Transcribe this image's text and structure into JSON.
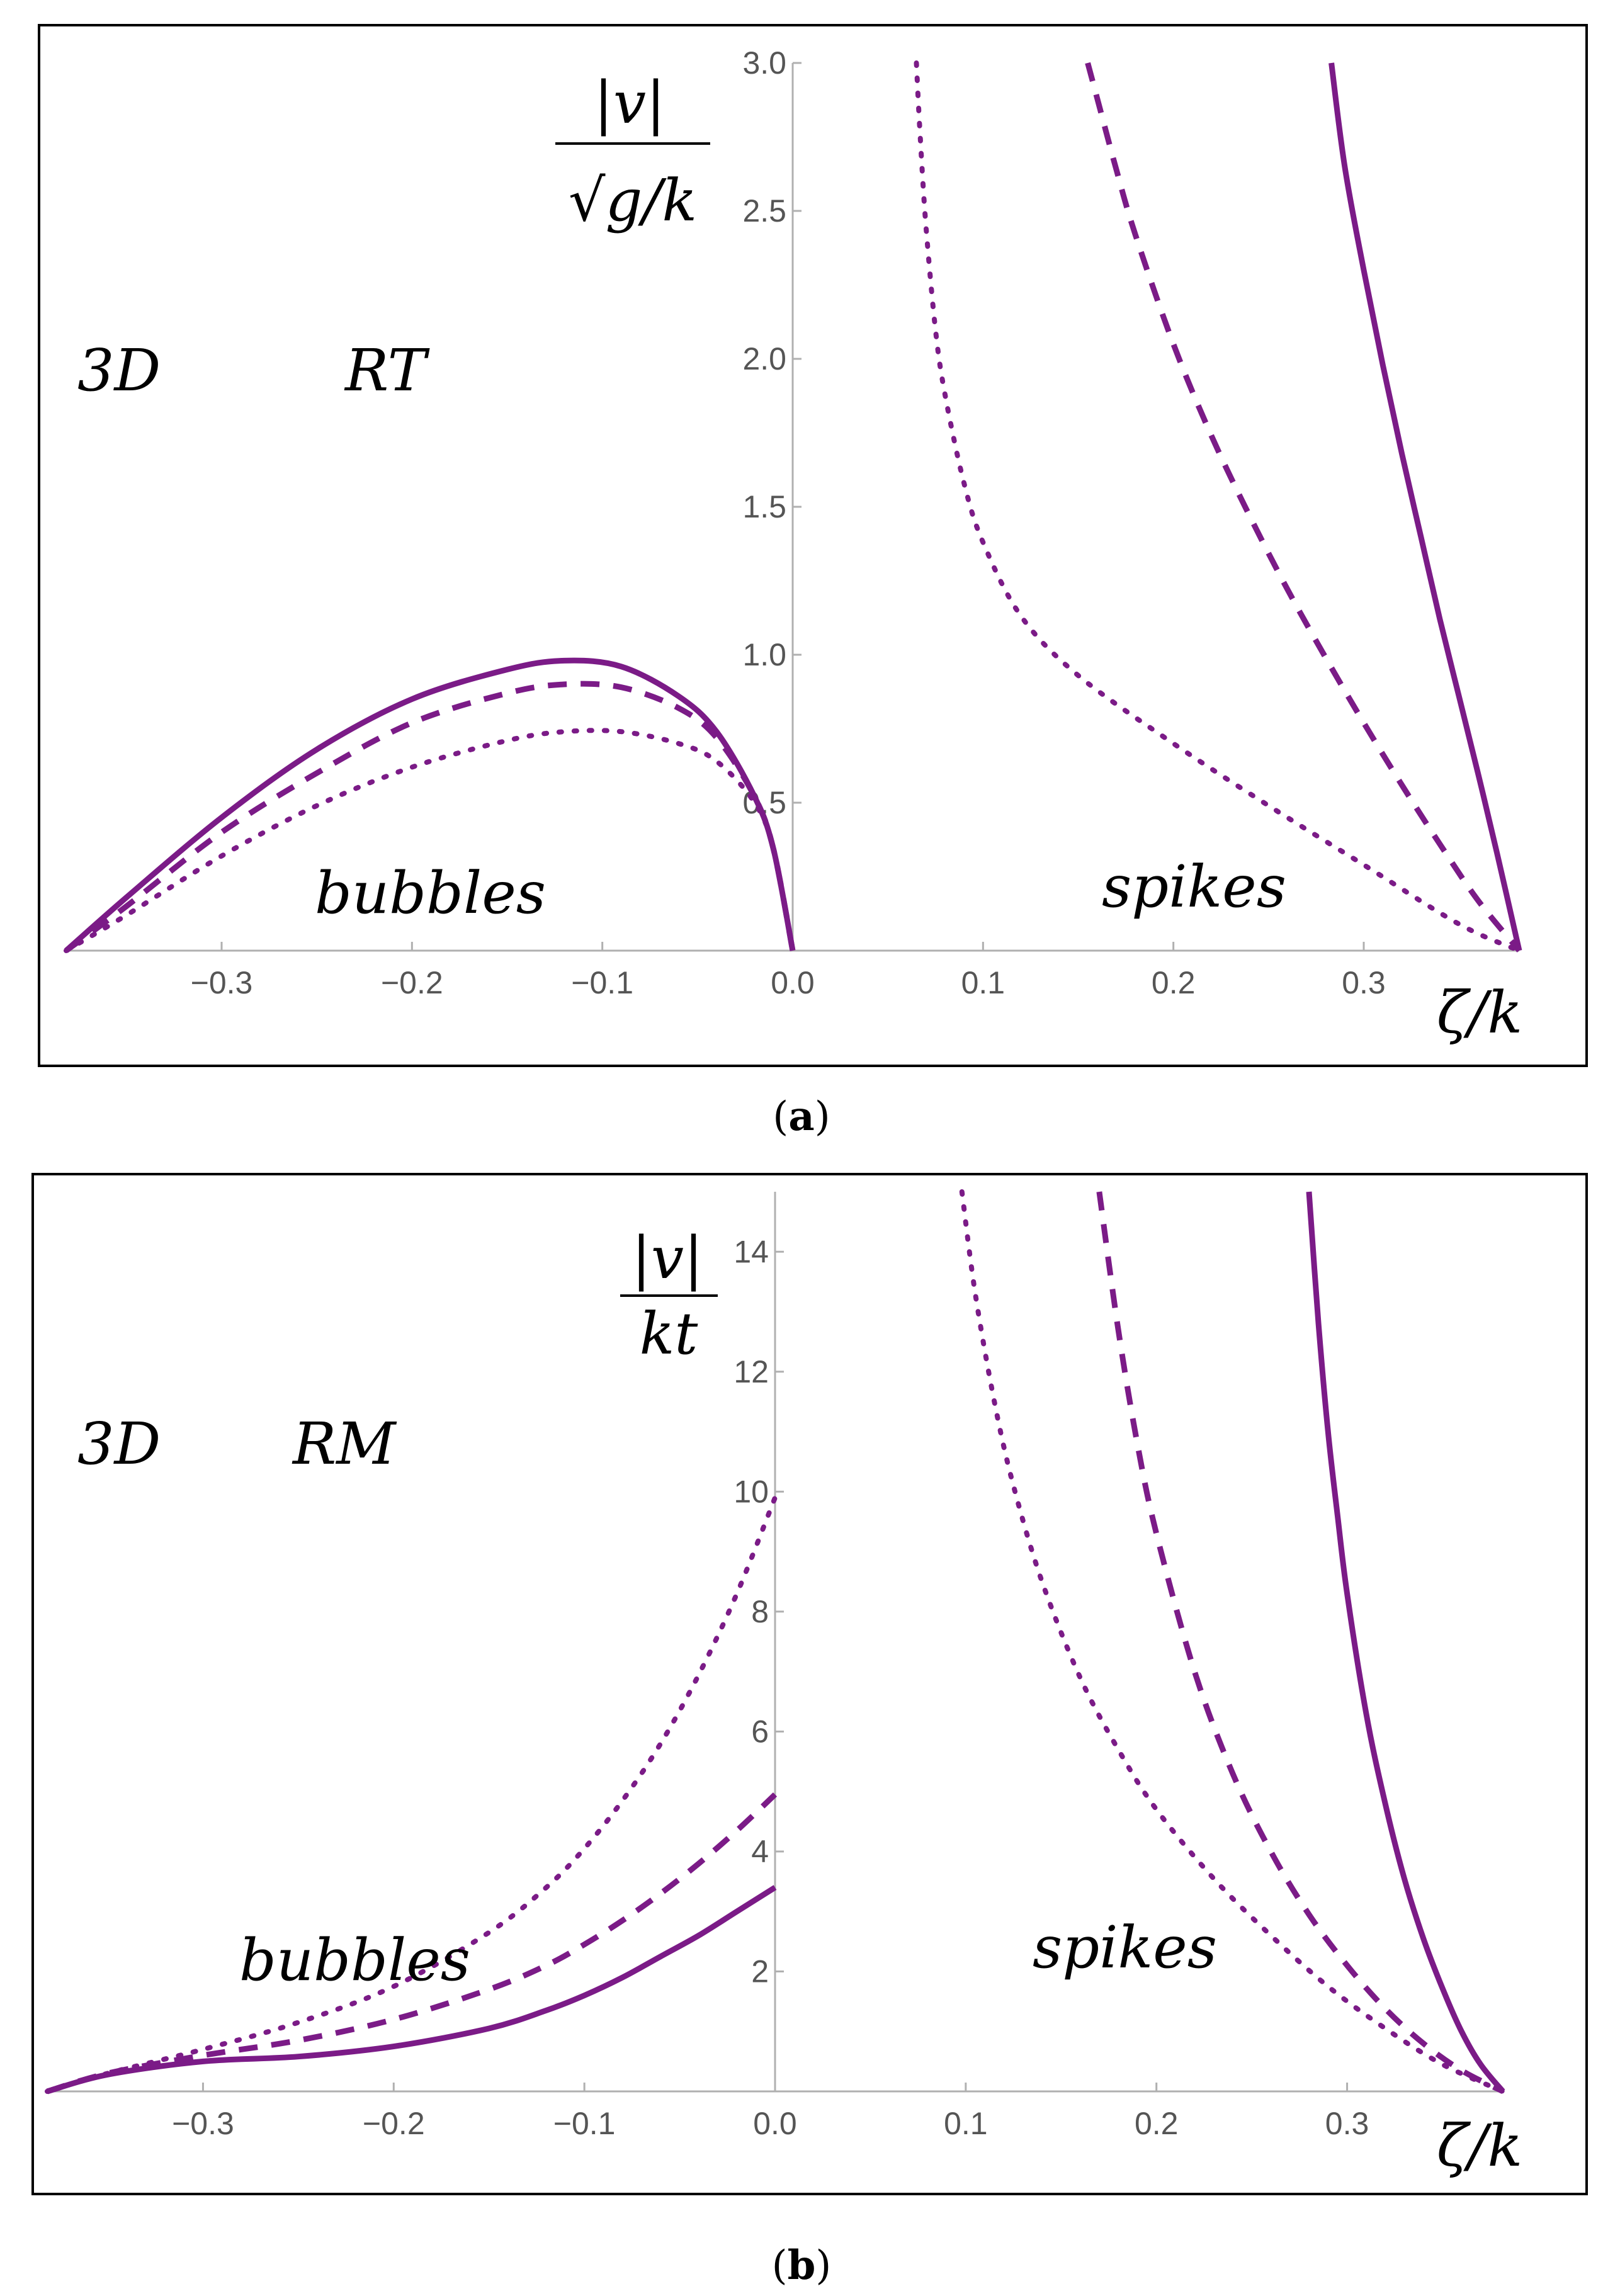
{
  "chart_data": [
    {
      "type": "line",
      "panel": "a",
      "dimension_label": "3D",
      "instability_label": "RT",
      "ylabel_numerator": "|v|",
      "ylabel_denominator": "√g/k",
      "xlabel": "ζ/k",
      "region_labels": {
        "left": "bubbles",
        "right": "spikes"
      },
      "caption_prefix": "(",
      "caption_letter": "a",
      "caption_suffix": ")",
      "xlim": [
        -0.3817,
        0.3817
      ],
      "ylim": [
        0,
        3.0
      ],
      "xticks": [
        {
          "value": -0.3,
          "label": "−0.3"
        },
        {
          "value": -0.2,
          "label": "−0.2"
        },
        {
          "value": -0.1,
          "label": "−0.1"
        },
        {
          "value": 0.0,
          "label": "0.0"
        },
        {
          "value": 0.1,
          "label": "0.1"
        },
        {
          "value": 0.2,
          "label": "0.2"
        },
        {
          "value": 0.3,
          "label": "0.3"
        }
      ],
      "yticks": [
        {
          "value": 0.5,
          "label": "0.5"
        },
        {
          "value": 1.0,
          "label": "1.0"
        },
        {
          "value": 1.5,
          "label": "1.5"
        },
        {
          "value": 2.0,
          "label": "2.0"
        },
        {
          "value": 2.5,
          "label": "2.5"
        },
        {
          "value": 3.0,
          "label": "3.0"
        }
      ],
      "series": [
        {
          "name": "bubbles-solid",
          "style": "solid",
          "x": [
            -0.3817,
            -0.35,
            -0.3,
            -0.25,
            -0.2,
            -0.15,
            -0.12,
            -0.09,
            -0.06,
            -0.04,
            -0.02,
            -0.01,
            0.0
          ],
          "y": [
            0.0,
            0.18,
            0.45,
            0.68,
            0.85,
            0.95,
            0.98,
            0.96,
            0.86,
            0.74,
            0.52,
            0.34,
            0.0
          ]
        },
        {
          "name": "bubbles-dashed",
          "style": "dashed",
          "x": [
            -0.3817,
            -0.35,
            -0.3,
            -0.25,
            -0.2,
            -0.15,
            -0.12,
            -0.09,
            -0.06,
            -0.04,
            -0.02,
            -0.01,
            0.0
          ],
          "y": [
            0.0,
            0.15,
            0.4,
            0.6,
            0.77,
            0.87,
            0.9,
            0.89,
            0.82,
            0.72,
            0.52,
            0.34,
            0.0
          ]
        },
        {
          "name": "bubbles-dotted",
          "style": "dotted",
          "x": [
            -0.3817,
            -0.35,
            -0.3,
            -0.25,
            -0.2,
            -0.15,
            -0.12,
            -0.09,
            -0.06,
            -0.04,
            -0.02,
            -0.01,
            0.0
          ],
          "y": [
            0.0,
            0.12,
            0.32,
            0.49,
            0.62,
            0.71,
            0.74,
            0.74,
            0.7,
            0.64,
            0.5,
            0.34,
            0.0
          ]
        },
        {
          "name": "spikes-solid",
          "style": "solid",
          "x": [
            0.283,
            0.29,
            0.3,
            0.31,
            0.32,
            0.33,
            0.34,
            0.35,
            0.36,
            0.37,
            0.3817
          ],
          "y": [
            3.0,
            2.65,
            2.3,
            1.98,
            1.68,
            1.4,
            1.12,
            0.86,
            0.6,
            0.33,
            0.0
          ]
        },
        {
          "name": "spikes-dashed",
          "style": "dashed",
          "x": [
            0.155,
            0.16,
            0.17,
            0.18,
            0.2,
            0.22,
            0.24,
            0.26,
            0.28,
            0.3,
            0.32,
            0.34,
            0.36,
            0.3817
          ],
          "y": [
            3.0,
            2.88,
            2.64,
            2.42,
            2.05,
            1.74,
            1.47,
            1.22,
            0.99,
            0.77,
            0.56,
            0.36,
            0.17,
            0.0
          ]
        },
        {
          "name": "spikes-dotted",
          "style": "dotted",
          "x": [
            0.065,
            0.067,
            0.07,
            0.075,
            0.08,
            0.09,
            0.1,
            0.12,
            0.15,
            0.2,
            0.25,
            0.3,
            0.35,
            0.3817
          ],
          "y": [
            3.0,
            2.75,
            2.45,
            2.1,
            1.88,
            1.58,
            1.38,
            1.13,
            0.93,
            0.7,
            0.49,
            0.29,
            0.09,
            0.0
          ]
        }
      ]
    },
    {
      "type": "line",
      "panel": "b",
      "dimension_label": "3D",
      "instability_label": "RM",
      "ylabel_numerator": "|v|",
      "ylabel_denominator": "kt",
      "xlabel": "ζ/k",
      "region_labels": {
        "left": "bubbles",
        "right": "spikes"
      },
      "caption_prefix": "(",
      "caption_letter": "b",
      "caption_suffix": ")",
      "xlim": [
        -0.3817,
        0.3817
      ],
      "ylim": [
        0,
        15
      ],
      "xticks": [
        {
          "value": -0.3,
          "label": "−0.3"
        },
        {
          "value": -0.2,
          "label": "−0.2"
        },
        {
          "value": -0.1,
          "label": "−0.1"
        },
        {
          "value": 0.0,
          "label": "0.0"
        },
        {
          "value": 0.1,
          "label": "0.1"
        },
        {
          "value": 0.2,
          "label": "0.2"
        },
        {
          "value": 0.3,
          "label": "0.3"
        }
      ],
      "yticks": [
        {
          "value": 2,
          "label": "2"
        },
        {
          "value": 4,
          "label": "4"
        },
        {
          "value": 6,
          "label": "6"
        },
        {
          "value": 8,
          "label": "8"
        },
        {
          "value": 10,
          "label": "10"
        },
        {
          "value": 12,
          "label": "12"
        },
        {
          "value": 14,
          "label": "14"
        }
      ],
      "series": [
        {
          "name": "bubbles-solid",
          "style": "solid",
          "x": [
            -0.3817,
            -0.35,
            -0.3,
            -0.25,
            -0.2,
            -0.15,
            -0.12,
            -0.1,
            -0.08,
            -0.06,
            -0.04,
            -0.02,
            0.0
          ],
          "y": [
            0.0,
            0.28,
            0.5,
            0.58,
            0.75,
            1.05,
            1.35,
            1.6,
            1.9,
            2.25,
            2.6,
            3.0,
            3.4
          ]
        },
        {
          "name": "bubbles-dashed",
          "style": "dashed",
          "x": [
            -0.3817,
            -0.35,
            -0.3,
            -0.25,
            -0.2,
            -0.15,
            -0.12,
            -0.1,
            -0.08,
            -0.06,
            -0.04,
            -0.02,
            0.0
          ],
          "y": [
            0.0,
            0.3,
            0.6,
            0.85,
            1.2,
            1.7,
            2.1,
            2.45,
            2.85,
            3.3,
            3.8,
            4.35,
            4.95
          ]
        },
        {
          "name": "bubbles-dotted",
          "style": "dotted",
          "x": [
            -0.3817,
            -0.35,
            -0.3,
            -0.25,
            -0.2,
            -0.15,
            -0.12,
            -0.1,
            -0.08,
            -0.06,
            -0.04,
            -0.02,
            0.0
          ],
          "y": [
            0.0,
            0.3,
            0.7,
            1.15,
            1.75,
            2.65,
            3.4,
            4.05,
            4.85,
            5.8,
            6.95,
            8.3,
            9.9
          ]
        },
        {
          "name": "spikes-solid",
          "style": "solid",
          "x": [
            0.28,
            0.285,
            0.29,
            0.295,
            0.3,
            0.31,
            0.32,
            0.33,
            0.34,
            0.35,
            0.36,
            0.37,
            0.3817
          ],
          "y": [
            15.0,
            12.8,
            11.0,
            9.6,
            8.3,
            6.3,
            4.8,
            3.55,
            2.55,
            1.72,
            1.0,
            0.45,
            0.0
          ]
        },
        {
          "name": "spikes-dashed",
          "style": "dashed",
          "x": [
            0.17,
            0.18,
            0.19,
            0.2,
            0.22,
            0.24,
            0.26,
            0.28,
            0.3,
            0.32,
            0.34,
            0.36,
            0.3817
          ],
          "y": [
            15.0,
            12.7,
            10.8,
            9.3,
            7.0,
            5.3,
            4.0,
            2.95,
            2.1,
            1.38,
            0.8,
            0.35,
            0.0
          ]
        },
        {
          "name": "spikes-dotted",
          "style": "dotted",
          "x": [
            0.098,
            0.105,
            0.115,
            0.125,
            0.14,
            0.16,
            0.18,
            0.2,
            0.23,
            0.26,
            0.29,
            0.32,
            0.35,
            0.3817
          ],
          "y": [
            15.0,
            13.3,
            11.5,
            10.1,
            8.5,
            6.9,
            5.7,
            4.7,
            3.55,
            2.6,
            1.75,
            1.05,
            0.45,
            0.0
          ]
        }
      ]
    }
  ]
}
